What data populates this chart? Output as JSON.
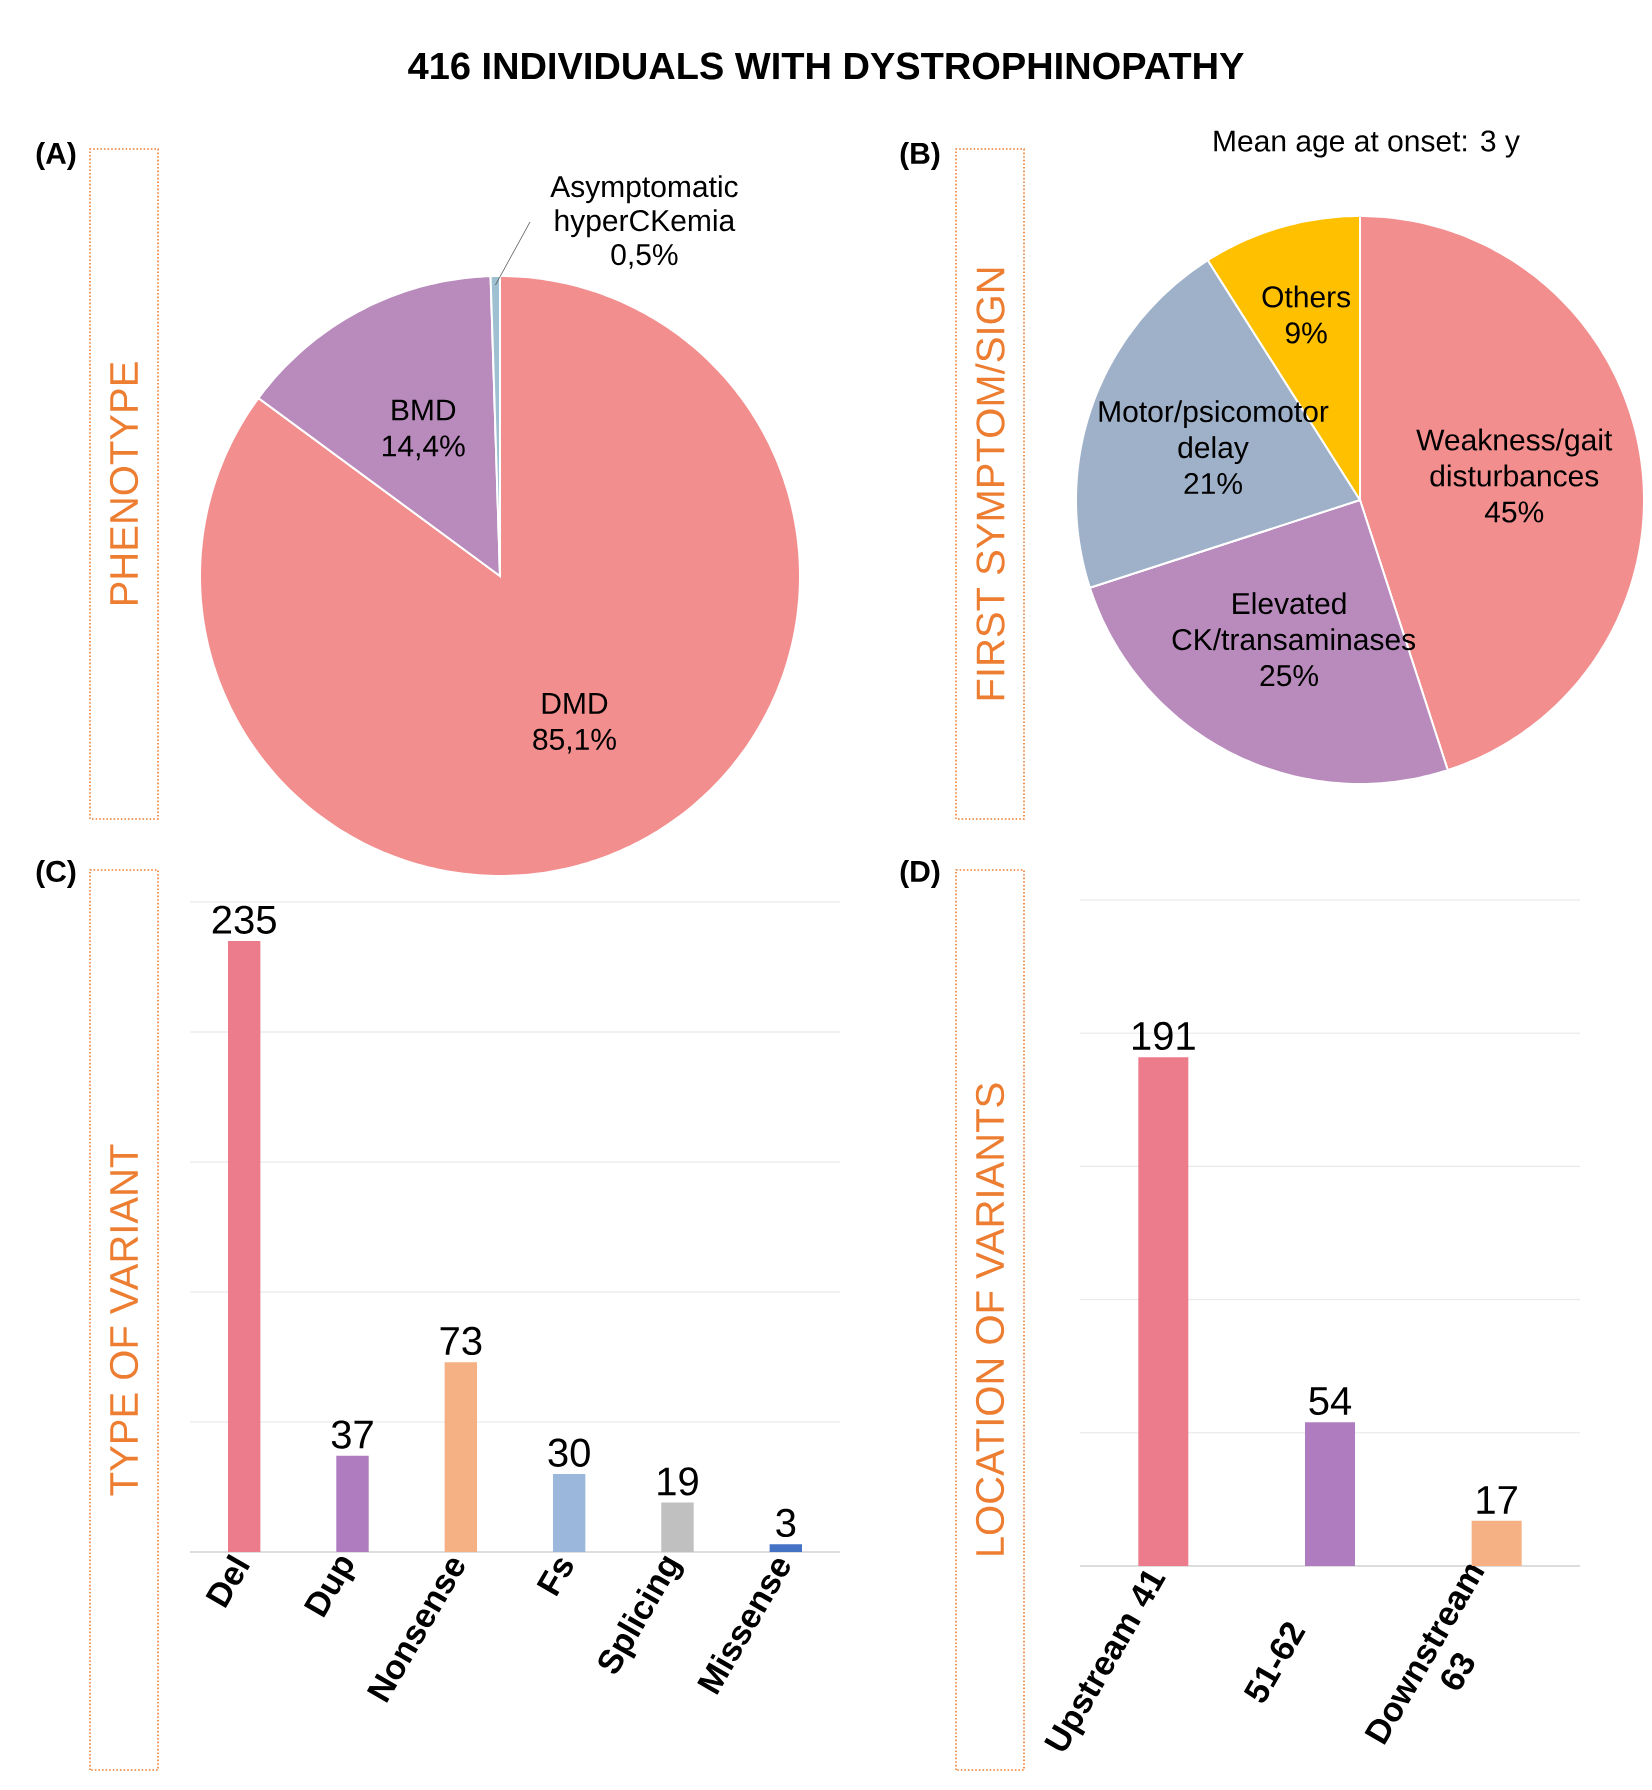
{
  "chart_data": [
    {
      "type": "pie",
      "title": "416 INDIVIDUALS WITH DYSTROPHINOPATHY",
      "ylabel": "PHENOTYPE",
      "annotations": [
        "(A)"
      ],
      "categories": [
        "DMD",
        "BMD",
        "Asymptomatic hyperCKemia"
      ],
      "values": [
        85.1,
        14.4,
        0.5
      ],
      "value_labels": [
        "85,1%",
        "14,4%",
        "0,5%"
      ],
      "colors": [
        "#f28e8e",
        "#b98bbd",
        "#9fc0d0"
      ]
    },
    {
      "type": "pie",
      "subtitle": "Mean age at onset: 3 y",
      "ylabel": "FIRST SYMPTOM/SIGN",
      "annotations": [
        "(B)"
      ],
      "categories": [
        "Weakness/gait disturbances",
        "Elevated CK/transaminases",
        "Motor/psicomotor delay",
        "Others"
      ],
      "values": [
        45,
        25,
        21,
        9
      ],
      "value_labels": [
        "45%",
        "25%",
        "21%",
        "9%"
      ],
      "colors": [
        "#f28e8e",
        "#b98bbd",
        "#9fb1c9",
        "#ffc000"
      ]
    },
    {
      "type": "bar",
      "ylabel": "TYPE OF VARIANT",
      "annotations": [
        "(C)"
      ],
      "categories": [
        "Del",
        "Dup",
        "Nonsense",
        "Fs",
        "Splicing",
        "Missense"
      ],
      "values": [
        235,
        37,
        73,
        30,
        19,
        3
      ],
      "colors": [
        "#ec7b8b",
        "#b07cc0",
        "#f5b083",
        "#9bb8dc",
        "#c0c0c0",
        "#4472c4"
      ],
      "data_labels": true,
      "grid": "y",
      "ylim": [
        0,
        250
      ],
      "yticks": [
        {
          "value": 0,
          "label": null
        },
        {
          "value": 50,
          "label": null
        },
        {
          "value": 100,
          "label": null
        },
        {
          "value": 150,
          "label": null
        },
        {
          "value": 200,
          "label": null
        },
        {
          "value": 250,
          "label": null
        }
      ]
    },
    {
      "type": "bar",
      "ylabel": "LOCATION OF VARIANTS",
      "annotations": [
        "(D)"
      ],
      "categories": [
        "Upstream 41",
        "51-62",
        "Downstream 63"
      ],
      "values": [
        191,
        54,
        17
      ],
      "colors": [
        "#ec7b8b",
        "#b07cc0",
        "#f5b083"
      ],
      "data_labels": true,
      "grid": "y",
      "ylim": [
        0,
        250
      ],
      "yticks": [
        {
          "value": 0,
          "label": null
        },
        {
          "value": 50,
          "label": null
        },
        {
          "value": 100,
          "label": null
        },
        {
          "value": 150,
          "label": null
        },
        {
          "value": 200,
          "label": null
        },
        {
          "value": 250,
          "label": null
        }
      ]
    }
  ]
}
